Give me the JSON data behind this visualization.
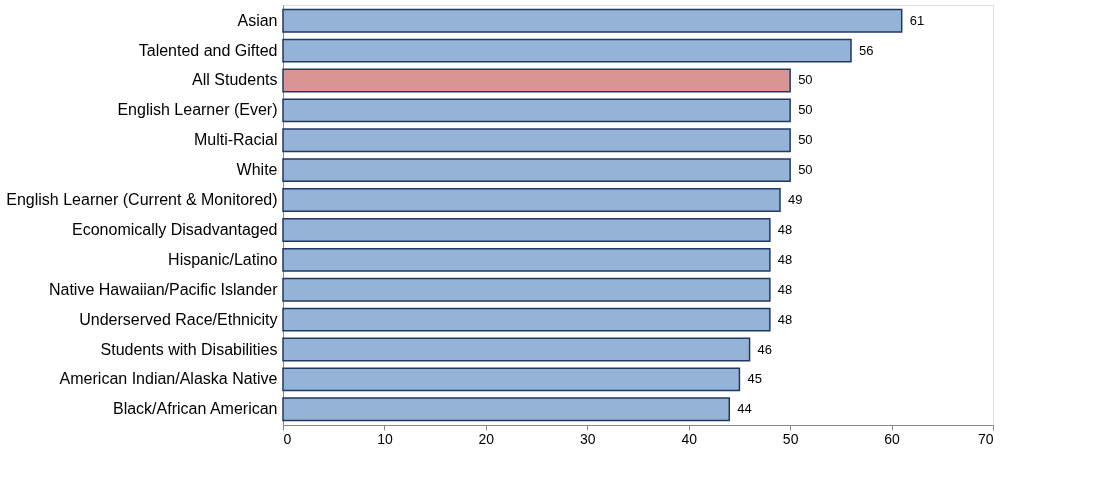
{
  "chart_data": {
    "type": "bar",
    "orientation": "horizontal",
    "categories": [
      "Asian",
      "Talented and Gifted",
      "All Students",
      "English Learner (Ever)",
      "Multi-Racial",
      "White",
      "English Learner (Current & Monitored)",
      "Economically Disadvantaged",
      "Hispanic/Latino",
      "Native Hawaiian/Pacific Islander",
      "Underserved Race/Ethnicity",
      "Students with Disabilities",
      "American Indian/Alaska Native",
      "Black/African American"
    ],
    "values": [
      61,
      56,
      50,
      50,
      50,
      50,
      49,
      48,
      48,
      48,
      48,
      46,
      45,
      44
    ],
    "colors": [
      "#95b3d7",
      "#95b3d7",
      "#d99594",
      "#95b3d7",
      "#95b3d7",
      "#95b3d7",
      "#95b3d7",
      "#95b3d7",
      "#95b3d7",
      "#95b3d7",
      "#95b3d7",
      "#95b3d7",
      "#95b3d7",
      "#95b3d7"
    ],
    "xlim": [
      0,
      70
    ],
    "xticks": [
      0,
      10,
      20,
      30,
      40,
      50,
      60,
      70
    ],
    "grid": false,
    "data_labels": true
  }
}
